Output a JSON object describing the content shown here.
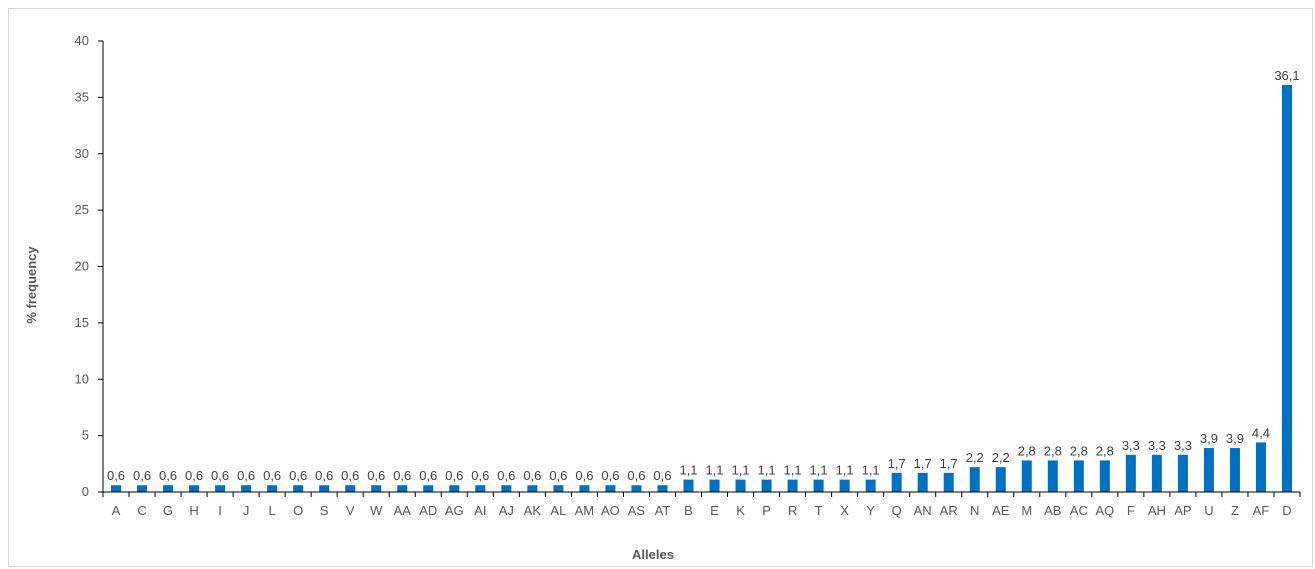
{
  "chart_data": {
    "type": "bar",
    "title": "",
    "xlabel": "Alleles",
    "ylabel": "% frequency",
    "ylim": [
      0,
      40
    ],
    "yticks": [
      0,
      5,
      10,
      15,
      20,
      25,
      30,
      35,
      40
    ],
    "grid": false,
    "legend": "none",
    "bar_color": "#0070c0",
    "categories": [
      "A",
      "C",
      "G",
      "H",
      "I",
      "J",
      "L",
      "O",
      "S",
      "V",
      "W",
      "AA",
      "AD",
      "AG",
      "AI",
      "AJ",
      "AK",
      "AL",
      "AM",
      "AO",
      "AS",
      "AT",
      "B",
      "E",
      "K",
      "P",
      "R",
      "T",
      "X",
      "Y",
      "Q",
      "AN",
      "AR",
      "N",
      "AE",
      "M",
      "AB",
      "AC",
      "AQ",
      "F",
      "AH",
      "AP",
      "U",
      "Z",
      "AF",
      "D"
    ],
    "values": [
      0.6,
      0.6,
      0.6,
      0.6,
      0.6,
      0.6,
      0.6,
      0.6,
      0.6,
      0.6,
      0.6,
      0.6,
      0.6,
      0.6,
      0.6,
      0.6,
      0.6,
      0.6,
      0.6,
      0.6,
      0.6,
      0.6,
      1.1,
      1.1,
      1.1,
      1.1,
      1.1,
      1.1,
      1.1,
      1.1,
      1.7,
      1.7,
      1.7,
      2.2,
      2.2,
      2.8,
      2.8,
      2.8,
      2.8,
      3.3,
      3.3,
      3.3,
      3.9,
      3.9,
      4.4,
      36.1
    ],
    "data_labels": [
      "0,6",
      "0,6",
      "0,6",
      "0,6",
      "0,6",
      "0,6",
      "0,6",
      "0,6",
      "0,6",
      "0,6",
      "0,6",
      "0,6",
      "0,6",
      "0,6",
      "0,6",
      "0,6",
      "0,6",
      "0,6",
      "0,6",
      "0,6",
      "0,6",
      "0,6",
      "1,1",
      "1,1",
      "1,1",
      "1,1",
      "1,1",
      "1,1",
      "1,1",
      "1,1",
      "1,7",
      "1,7",
      "1,7",
      "2,2",
      "2,2",
      "2,8",
      "2,8",
      "2,8",
      "2,8",
      "3,3",
      "3,3",
      "3,3",
      "3,9",
      "3,9",
      "4,4",
      "36,1"
    ]
  }
}
